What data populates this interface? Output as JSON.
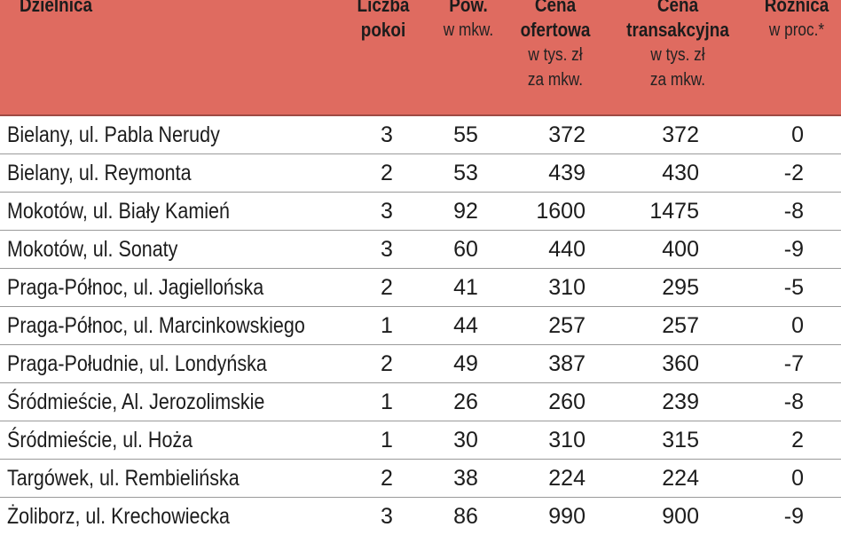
{
  "headers": {
    "district": "Dzielnica",
    "rooms": [
      "Liczba",
      "pokoi"
    ],
    "area": [
      "Pow.",
      "w mkw."
    ],
    "offer_price": [
      "Cena",
      "ofertowa",
      "w tys. zł",
      "za mkw."
    ],
    "transaction_price": [
      "Cena",
      "transakcyjna",
      "w tys. zł",
      "za mkw."
    ],
    "difference": [
      "Różnica",
      "w proc.*"
    ]
  },
  "rows": [
    {
      "district": "Bielany, ul. Pabla Nerudy",
      "rooms": "3",
      "area": "55",
      "offer": "372",
      "transaction": "372",
      "diff": "0"
    },
    {
      "district": "Bielany, ul. Reymonta",
      "rooms": "2",
      "area": "53",
      "offer": "439",
      "transaction": "430",
      "diff": "-2"
    },
    {
      "district": "Mokotów, ul. Biały Kamień",
      "rooms": "3",
      "area": "92",
      "offer": "1600",
      "transaction": "1475",
      "diff": "-8"
    },
    {
      "district": "Mokotów, ul. Sonaty",
      "rooms": "3",
      "area": "60",
      "offer": "440",
      "transaction": "400",
      "diff": "-9"
    },
    {
      "district": "Praga-Północ, ul. Jagiellońska",
      "rooms": "2",
      "area": "41",
      "offer": "310",
      "transaction": "295",
      "diff": "-5"
    },
    {
      "district": "Praga-Północ, ul. Marcinkowskiego",
      "rooms": "1",
      "area": "44",
      "offer": "257",
      "transaction": "257",
      "diff": "0"
    },
    {
      "district": "Praga-Południe, ul. Londyńska",
      "rooms": "2",
      "area": "49",
      "offer": "387",
      "transaction": "360",
      "diff": "-7"
    },
    {
      "district": "Śródmieście, Al. Jerozolimskie",
      "rooms": "1",
      "area": "26",
      "offer": "260",
      "transaction": "239",
      "diff": "-8"
    },
    {
      "district": "Śródmieście, ul. Hoża",
      "rooms": "1",
      "area": "30",
      "offer": "310",
      "transaction": "315",
      "diff": "2"
    },
    {
      "district": "Targówek, ul. Rembielińska",
      "rooms": "2",
      "area": "38",
      "offer": "224",
      "transaction": "224",
      "diff": "0"
    },
    {
      "district": "Żoliborz, ul. Krechowiecka",
      "rooms": "3",
      "area": "86",
      "offer": "990",
      "transaction": "900",
      "diff": "-9"
    }
  ],
  "colors": {
    "header_bg": "#df6b60",
    "row_divider": "#9a9a9a",
    "text": "#1c1c1c"
  }
}
